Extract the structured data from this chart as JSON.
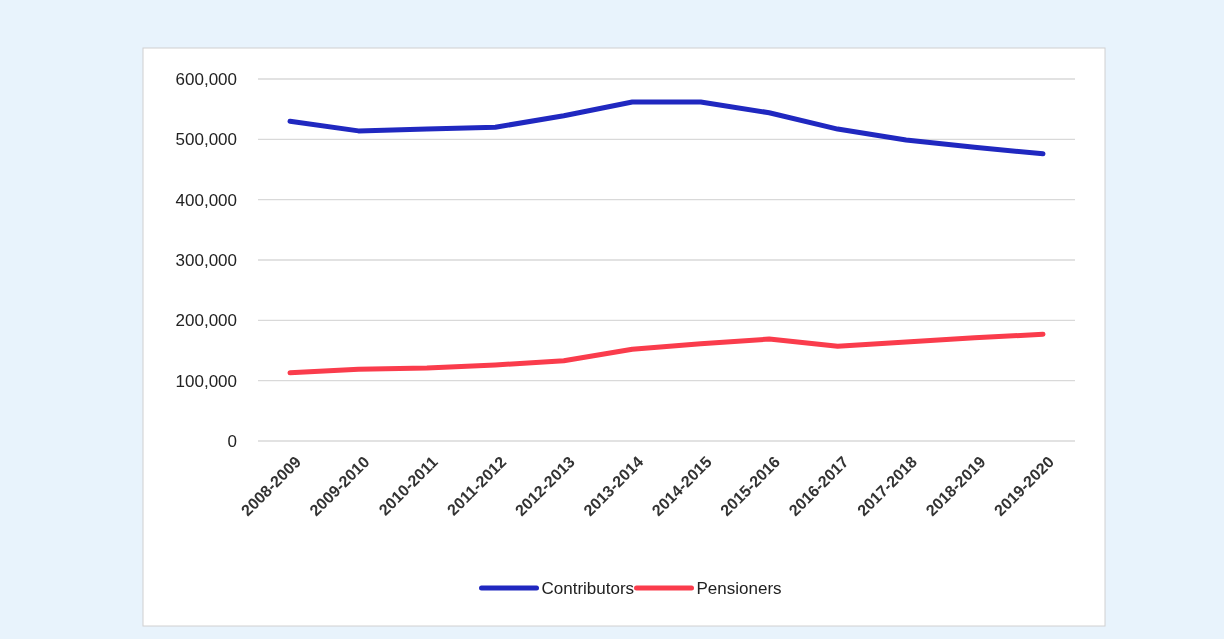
{
  "chart_data": {
    "type": "line",
    "categories": [
      "2008-2009",
      "2009-2010",
      "2010-2011",
      "2011-2012",
      "2012-2013",
      "2013-2014",
      "2014-2015",
      "2015-2016",
      "2016-2017",
      "2017-2018",
      "2018-2019",
      "2019-2020"
    ],
    "series": [
      {
        "name": "Contributors",
        "color": "#2028c0",
        "values": [
          530000,
          514000,
          517000,
          520000,
          539000,
          562000,
          562000,
          544000,
          517000,
          499000,
          487000,
          476000
        ]
      },
      {
        "name": "Pensioners",
        "color": "#fa3c4c",
        "values": [
          113000,
          119000,
          121000,
          126000,
          133000,
          152000,
          161000,
          169000,
          157000,
          164000,
          171000,
          177000
        ]
      }
    ],
    "ylim": [
      0,
      600000
    ],
    "yticks": [
      {
        "value": 0,
        "label": "0"
      },
      {
        "value": 100000,
        "label": "100,000"
      },
      {
        "value": 200000,
        "label": "200,000"
      },
      {
        "value": 300000,
        "label": "300,000"
      },
      {
        "value": 400000,
        "label": "400,000"
      },
      {
        "value": 500000,
        "label": "500,000"
      },
      {
        "value": 600000,
        "label": "600,000"
      }
    ],
    "grid": "y",
    "legend": "bottom",
    "marker": "none",
    "line_style": "solid"
  }
}
